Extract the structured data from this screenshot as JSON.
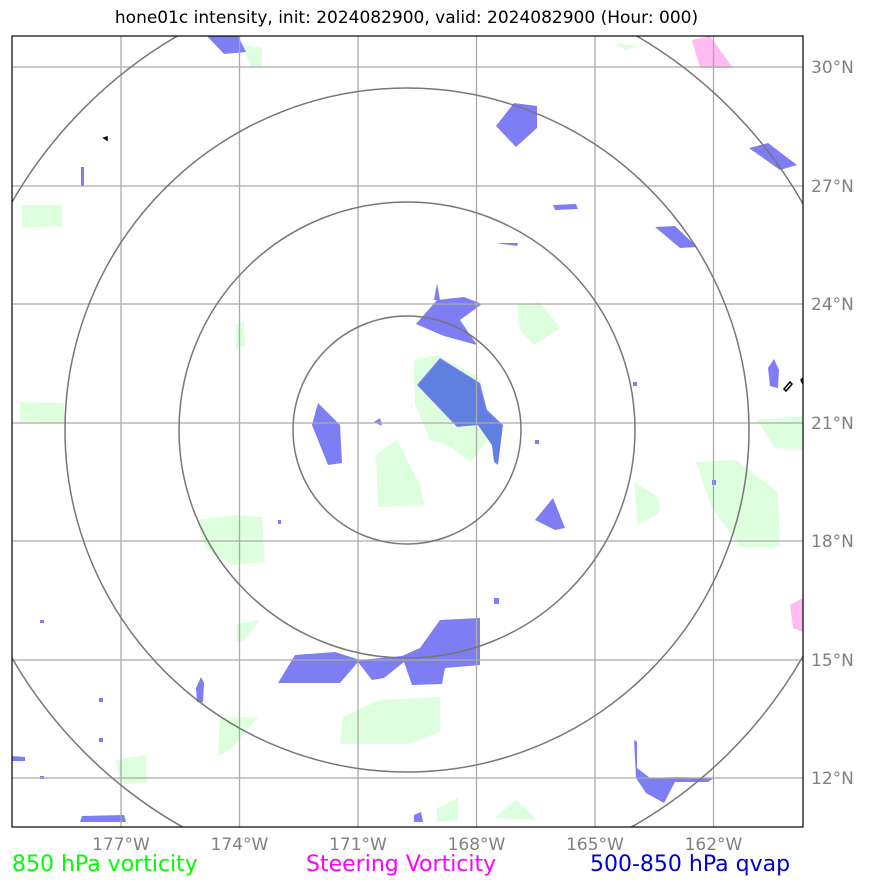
{
  "title": "hone01c intensity, init: 2024082900, valid: 2024082900 (Hour: 000)",
  "lon_labels": [
    "177°W",
    "174°W",
    "171°W",
    "168°W",
    "165°W",
    "162°W"
  ],
  "lat_labels": [
    "30°N",
    "27°N",
    "24°N",
    "21°N",
    "18°N",
    "15°N",
    "12°N"
  ],
  "legend": {
    "vort850": "850 hPa vorticity",
    "steering": "Steering Vorticity",
    "qvap": "500-850 hPa qvap"
  },
  "colors": {
    "vort850_fill": "#ddffdd",
    "steering_fill": "#ffbbf2",
    "qvap_fill": "#7d7df4",
    "overlap_fill": "#6080e0",
    "grid": "#aaaaaa",
    "range_rings": "#777777",
    "tick_labels": "#808080"
  }
}
